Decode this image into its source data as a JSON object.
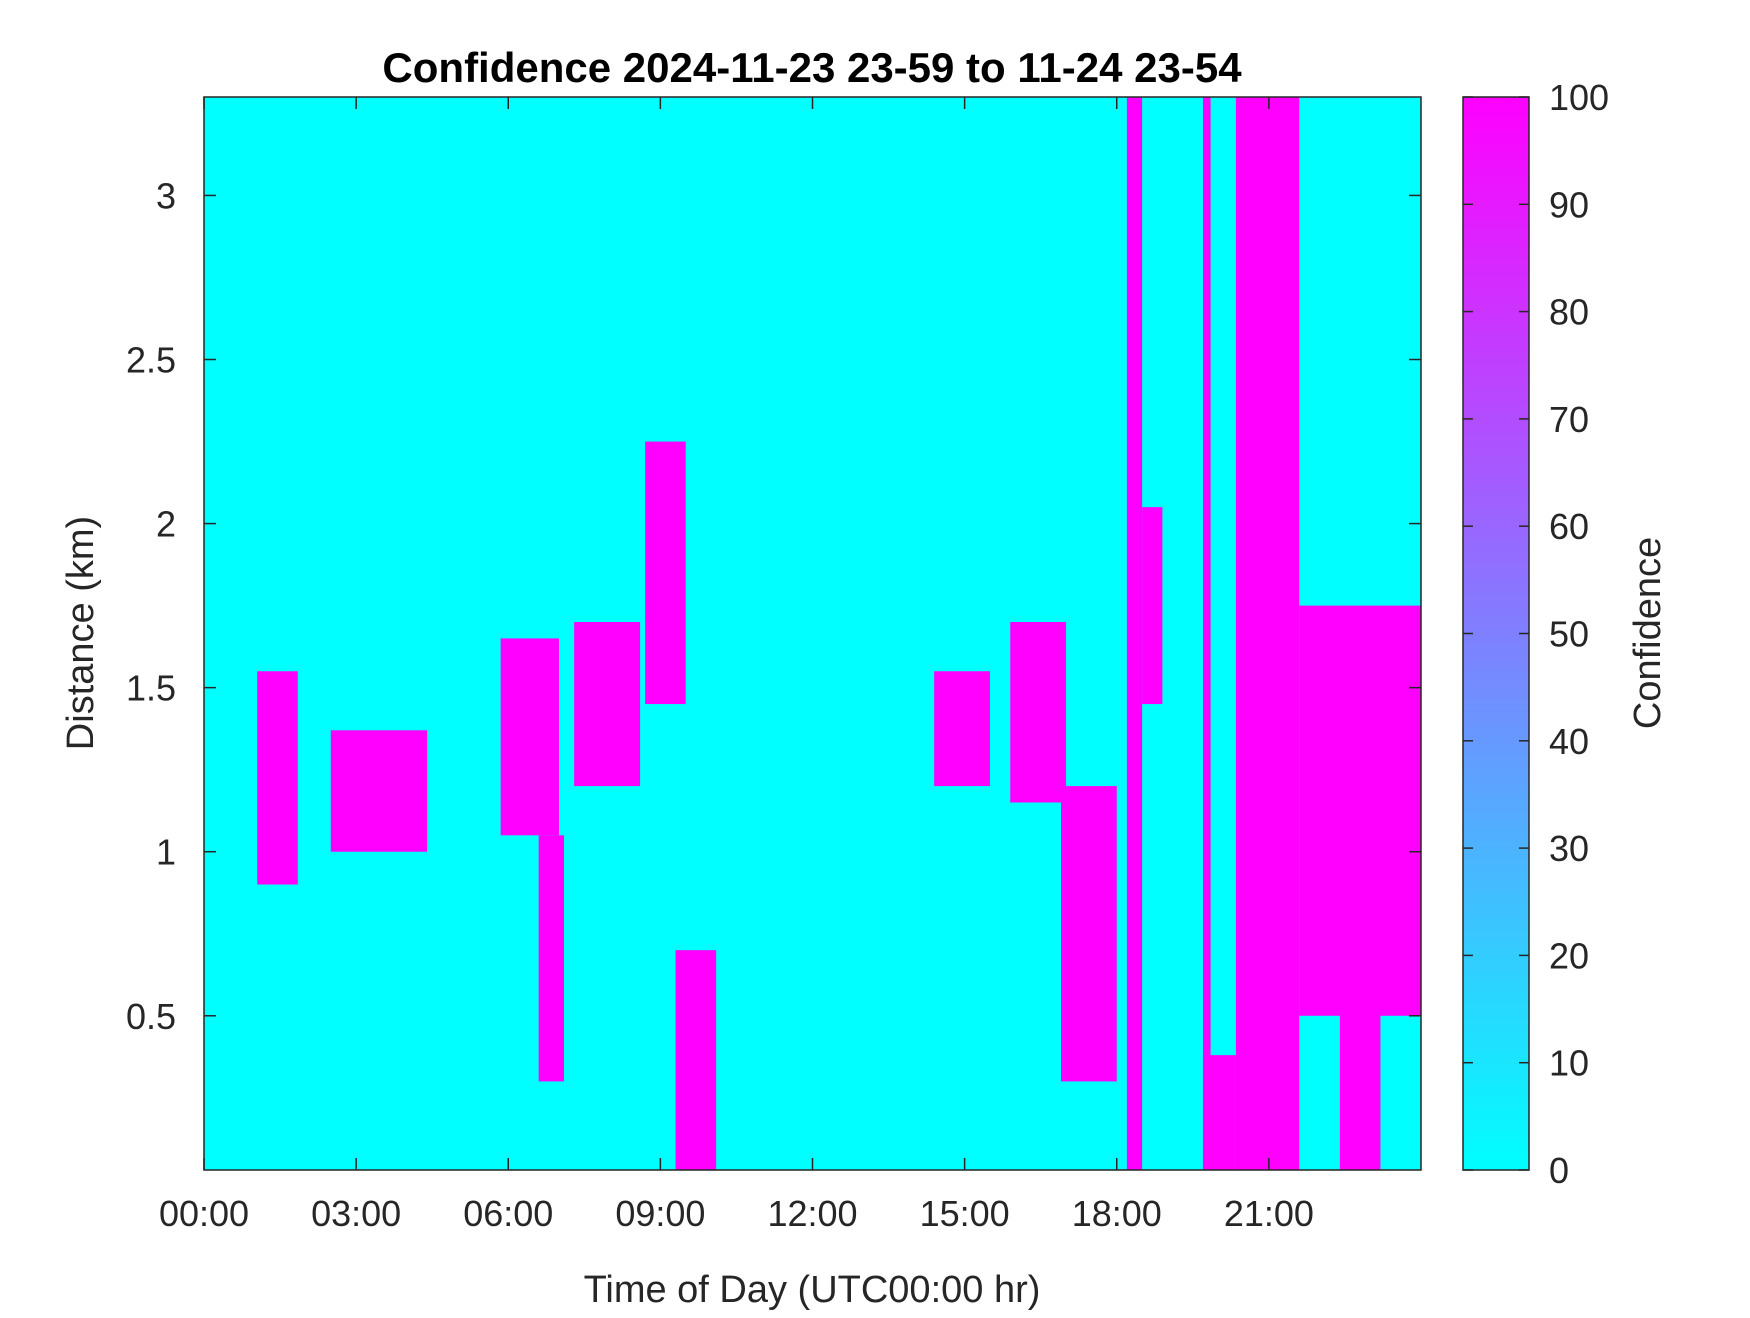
{
  "chart_data": {
    "type": "heatmap",
    "title": "Confidence 2024-11-23 23-59 to 11-24 23-54",
    "xlabel": "Time of Day (UTC00:00 hr)",
    "ylabel": "Distance (km)",
    "xlim_hours": [
      0,
      24
    ],
    "ylim": [
      0.03,
      3.3
    ],
    "x_ticks": [
      {
        "value": 0,
        "label": "00:00"
      },
      {
        "value": 3,
        "label": "03:00"
      },
      {
        "value": 6,
        "label": "06:00"
      },
      {
        "value": 9,
        "label": "09:00"
      },
      {
        "value": 12,
        "label": "12:00"
      },
      {
        "value": 15,
        "label": "15:00"
      },
      {
        "value": 18,
        "label": "18:00"
      },
      {
        "value": 21,
        "label": "21:00"
      }
    ],
    "y_ticks": [
      {
        "value": 0.5,
        "label": "0.5"
      },
      {
        "value": 1,
        "label": "1"
      },
      {
        "value": 1.5,
        "label": "1.5"
      },
      {
        "value": 2,
        "label": "2"
      },
      {
        "value": 2.5,
        "label": "2.5"
      },
      {
        "value": 3,
        "label": "3"
      }
    ],
    "colorbar": {
      "label": "Confidence",
      "range": [
        0,
        100
      ],
      "low_color": "#00ffff",
      "high_color": "#ff00ff",
      "ticks": [
        {
          "value": 0,
          "label": "0"
        },
        {
          "value": 10,
          "label": "10"
        },
        {
          "value": 20,
          "label": "20"
        },
        {
          "value": 30,
          "label": "30"
        },
        {
          "value": 40,
          "label": "40"
        },
        {
          "value": 50,
          "label": "50"
        },
        {
          "value": 60,
          "label": "60"
        },
        {
          "value": 70,
          "label": "70"
        },
        {
          "value": 80,
          "label": "80"
        },
        {
          "value": 90,
          "label": "90"
        },
        {
          "value": 100,
          "label": "100"
        }
      ]
    },
    "background_value": 0,
    "regions": [
      {
        "name": "cloud-0100",
        "x": [
          1.05,
          1.85
        ],
        "y": [
          0.9,
          1.55
        ],
        "value": 100
      },
      {
        "name": "cloud-0230",
        "x": [
          2.5,
          4.4
        ],
        "y": [
          1.0,
          1.37
        ],
        "value": 100
      },
      {
        "name": "cloud-0600-upper",
        "x": [
          5.85,
          7.0
        ],
        "y": [
          1.05,
          1.65
        ],
        "value": 100
      },
      {
        "name": "cloud-0600-lower",
        "x": [
          6.6,
          7.1
        ],
        "y": [
          0.3,
          1.05
        ],
        "value": 100
      },
      {
        "name": "cloud-0730",
        "x": [
          7.3,
          8.6
        ],
        "y": [
          1.2,
          1.7
        ],
        "value": 100
      },
      {
        "name": "cloud-0845",
        "x": [
          8.7,
          9.5
        ],
        "y": [
          1.45,
          2.25
        ],
        "value": 100
      },
      {
        "name": "cloud-0945-low",
        "x": [
          9.3,
          10.1
        ],
        "y": [
          0.03,
          0.7
        ],
        "value": 100
      },
      {
        "name": "cloud-1400",
        "x": [
          14.4,
          15.5
        ],
        "y": [
          1.2,
          1.55
        ],
        "value": 100
      },
      {
        "name": "cloud-1600",
        "x": [
          15.9,
          17.0
        ],
        "y": [
          1.15,
          1.7
        ],
        "value": 100
      },
      {
        "name": "cloud-1700-descending",
        "x": [
          16.9,
          18.0
        ],
        "y": [
          0.3,
          1.2
        ],
        "value": 100
      },
      {
        "name": "column-1815",
        "x": [
          18.2,
          18.5
        ],
        "y": [
          0.03,
          3.3
        ],
        "value": 100
      },
      {
        "name": "cloud-1830",
        "x": [
          18.5,
          18.9
        ],
        "y": [
          1.45,
          2.05
        ],
        "value": 100
      },
      {
        "name": "block-1945-low",
        "x": [
          19.7,
          20.35
        ],
        "y": [
          0.03,
          0.38
        ],
        "value": 100
      },
      {
        "name": "column-1945",
        "x": [
          19.7,
          19.85
        ],
        "y": [
          0.03,
          3.3
        ],
        "value": 100
      },
      {
        "name": "column-2030",
        "x": [
          20.35,
          21.6
        ],
        "y": [
          0.03,
          3.3
        ],
        "value": 100
      },
      {
        "name": "cloud-2200",
        "x": [
          21.6,
          24.0
        ],
        "y": [
          0.5,
          1.75
        ],
        "value": 100
      },
      {
        "name": "cloud-2230-low",
        "x": [
          22.4,
          23.2
        ],
        "y": [
          0.03,
          0.6
        ],
        "value": 100
      }
    ]
  }
}
